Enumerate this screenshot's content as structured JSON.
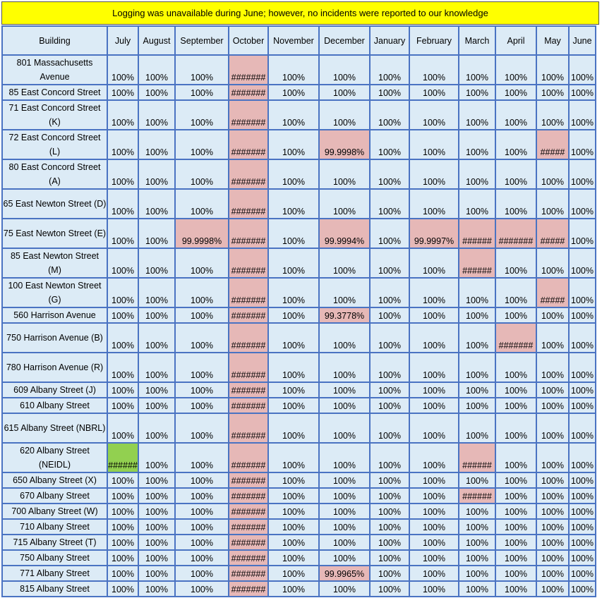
{
  "banner": "Logging was unavailable during June; however, no incidents were reported to our knowledge",
  "columns": [
    "Building",
    "July",
    "August",
    "September",
    "October",
    "November",
    "December",
    "January",
    "February",
    "March",
    "April",
    "May",
    "June"
  ],
  "colors": {
    "banner": "#ffff00",
    "cell": "#dcebf6",
    "border": "#4a73c2",
    "flag": "#e6b8b7",
    "green": "#92d050"
  },
  "rows": [
    {
      "building": "801 Massachusetts Avenue",
      "values": [
        "100%",
        "100%",
        "100%",
        "#######",
        "100%",
        "100%",
        "100%",
        "100%",
        "100%",
        "100%",
        "100%",
        "100%"
      ],
      "flags": [
        "",
        "",
        "",
        "pink",
        "",
        "",
        "",
        "",
        "",
        "",
        "",
        ""
      ]
    },
    {
      "building": "85 East Concord Street",
      "values": [
        "100%",
        "100%",
        "100%",
        "#######",
        "100%",
        "100%",
        "100%",
        "100%",
        "100%",
        "100%",
        "100%",
        "100%"
      ],
      "flags": [
        "",
        "",
        "",
        "pink",
        "",
        "",
        "",
        "",
        "",
        "",
        "",
        ""
      ]
    },
    {
      "building": "71 East Concord Street (K)",
      "values": [
        "100%",
        "100%",
        "100%",
        "#######",
        "100%",
        "100%",
        "100%",
        "100%",
        "100%",
        "100%",
        "100%",
        "100%"
      ],
      "flags": [
        "",
        "",
        "",
        "pink",
        "",
        "",
        "",
        "",
        "",
        "",
        "",
        ""
      ]
    },
    {
      "building": "72 East Concord Street (L)",
      "values": [
        "100%",
        "100%",
        "100%",
        "#######",
        "100%",
        "99.9998%",
        "100%",
        "100%",
        "100%",
        "100%",
        "#####",
        "100%"
      ],
      "flags": [
        "",
        "",
        "",
        "pink",
        "",
        "pink",
        "",
        "",
        "",
        "",
        "pink",
        ""
      ]
    },
    {
      "building": "80 East Concord Street (A)",
      "values": [
        "100%",
        "100%",
        "100%",
        "#######",
        "100%",
        "100%",
        "100%",
        "100%",
        "100%",
        "100%",
        "100%",
        "100%"
      ],
      "flags": [
        "",
        "",
        "",
        "pink",
        "",
        "",
        "",
        "",
        "",
        "",
        "",
        ""
      ]
    },
    {
      "building": "65 East Newton Street (D)",
      "values": [
        "100%",
        "100%",
        "100%",
        "#######",
        "100%",
        "100%",
        "100%",
        "100%",
        "100%",
        "100%",
        "100%",
        "100%"
      ],
      "flags": [
        "",
        "",
        "",
        "pink",
        "",
        "",
        "",
        "",
        "",
        "",
        "",
        ""
      ]
    },
    {
      "building": "75 East Newton Street (E)",
      "values": [
        "100%",
        "100%",
        "99.9998%",
        "#######",
        "100%",
        "99.9994%",
        "100%",
        "99.9997%",
        "######",
        "#######",
        "#####",
        "100%"
      ],
      "flags": [
        "",
        "",
        "pink",
        "pink",
        "",
        "pink",
        "",
        "pink",
        "pink",
        "pink",
        "pink",
        ""
      ]
    },
    {
      "building": "85 East Newton Street (M)",
      "values": [
        "100%",
        "100%",
        "100%",
        "#######",
        "100%",
        "100%",
        "100%",
        "100%",
        "######",
        "100%",
        "100%",
        "100%"
      ],
      "flags": [
        "",
        "",
        "",
        "pink",
        "",
        "",
        "",
        "",
        "pink",
        "",
        "",
        ""
      ]
    },
    {
      "building": "100 East Newton Street (G)",
      "values": [
        "100%",
        "100%",
        "100%",
        "#######",
        "100%",
        "100%",
        "100%",
        "100%",
        "100%",
        "100%",
        "#####",
        "100%"
      ],
      "flags": [
        "",
        "",
        "",
        "pink",
        "",
        "",
        "",
        "",
        "",
        "",
        "pink",
        ""
      ]
    },
    {
      "building": "560 Harrison Avenue",
      "values": [
        "100%",
        "100%",
        "100%",
        "#######",
        "100%",
        "99.3778%",
        "100%",
        "100%",
        "100%",
        "100%",
        "100%",
        "100%"
      ],
      "flags": [
        "",
        "",
        "",
        "pink",
        "",
        "pink",
        "",
        "",
        "",
        "",
        "",
        ""
      ]
    },
    {
      "building": "750 Harrison Avenue (B)",
      "values": [
        "100%",
        "100%",
        "100%",
        "#######",
        "100%",
        "100%",
        "100%",
        "100%",
        "100%",
        "#######",
        "100%",
        "100%"
      ],
      "flags": [
        "",
        "",
        "",
        "pink",
        "",
        "",
        "",
        "",
        "",
        "pink",
        "",
        ""
      ]
    },
    {
      "building": "780 Harrison Avenue (R)",
      "values": [
        "100%",
        "100%",
        "100%",
        "#######",
        "100%",
        "100%",
        "100%",
        "100%",
        "100%",
        "100%",
        "100%",
        "100%"
      ],
      "flags": [
        "",
        "",
        "",
        "pink",
        "",
        "",
        "",
        "",
        "",
        "",
        "",
        ""
      ]
    },
    {
      "building": "609 Albany Street (J)",
      "values": [
        "100%",
        "100%",
        "100%",
        "#######",
        "100%",
        "100%",
        "100%",
        "100%",
        "100%",
        "100%",
        "100%",
        "100%"
      ],
      "flags": [
        "",
        "",
        "",
        "pink",
        "",
        "",
        "",
        "",
        "",
        "",
        "",
        ""
      ]
    },
    {
      "building": "610 Albany Street",
      "values": [
        "100%",
        "100%",
        "100%",
        "#######",
        "100%",
        "100%",
        "100%",
        "100%",
        "100%",
        "100%",
        "100%",
        "100%"
      ],
      "flags": [
        "",
        "",
        "",
        "pink",
        "",
        "",
        "",
        "",
        "",
        "",
        "",
        ""
      ]
    },
    {
      "building": "615 Albany Street (NBRL)",
      "values": [
        "100%",
        "100%",
        "100%",
        "#######",
        "100%",
        "100%",
        "100%",
        "100%",
        "100%",
        "100%",
        "100%",
        "100%"
      ],
      "flags": [
        "",
        "",
        "",
        "pink",
        "",
        "",
        "",
        "",
        "",
        "",
        "",
        ""
      ]
    },
    {
      "building": "620 Albany Street (NEIDL)",
      "values": [
        "######",
        "100%",
        "100%",
        "#######",
        "100%",
        "100%",
        "100%",
        "100%",
        "######",
        "100%",
        "100%",
        "100%"
      ],
      "flags": [
        "green",
        "",
        "",
        "pink",
        "",
        "",
        "",
        "",
        "pink",
        "",
        "",
        ""
      ]
    },
    {
      "building": "650 Albany Street (X)",
      "values": [
        "100%",
        "100%",
        "100%",
        "#######",
        "100%",
        "100%",
        "100%",
        "100%",
        "100%",
        "100%",
        "100%",
        "100%"
      ],
      "flags": [
        "",
        "",
        "",
        "pink",
        "",
        "",
        "",
        "",
        "",
        "",
        "",
        ""
      ]
    },
    {
      "building": "670 Albany Street",
      "values": [
        "100%",
        "100%",
        "100%",
        "#######",
        "100%",
        "100%",
        "100%",
        "100%",
        "######",
        "100%",
        "100%",
        "100%"
      ],
      "flags": [
        "",
        "",
        "",
        "pink",
        "",
        "",
        "",
        "",
        "pink",
        "",
        "",
        ""
      ]
    },
    {
      "building": "700 Albany Street (W)",
      "values": [
        "100%",
        "100%",
        "100%",
        "#######",
        "100%",
        "100%",
        "100%",
        "100%",
        "100%",
        "100%",
        "100%",
        "100%"
      ],
      "flags": [
        "",
        "",
        "",
        "pink",
        "",
        "",
        "",
        "",
        "",
        "",
        "",
        ""
      ]
    },
    {
      "building": "710 Albany Street",
      "values": [
        "100%",
        "100%",
        "100%",
        "#######",
        "100%",
        "100%",
        "100%",
        "100%",
        "100%",
        "100%",
        "100%",
        "100%"
      ],
      "flags": [
        "",
        "",
        "",
        "pink",
        "",
        "",
        "",
        "",
        "",
        "",
        "",
        ""
      ]
    },
    {
      "building": "715 Albany Street (T)",
      "values": [
        "100%",
        "100%",
        "100%",
        "#######",
        "100%",
        "100%",
        "100%",
        "100%",
        "100%",
        "100%",
        "100%",
        "100%"
      ],
      "flags": [
        "",
        "",
        "",
        "pink",
        "",
        "",
        "",
        "",
        "",
        "",
        "",
        ""
      ]
    },
    {
      "building": "750 Albany Street",
      "values": [
        "100%",
        "100%",
        "100%",
        "#######",
        "100%",
        "100%",
        "100%",
        "100%",
        "100%",
        "100%",
        "100%",
        "100%"
      ],
      "flags": [
        "",
        "",
        "",
        "pink",
        "",
        "",
        "",
        "",
        "",
        "",
        "",
        ""
      ]
    },
    {
      "building": "771 Albany Street",
      "values": [
        "100%",
        "100%",
        "100%",
        "#######",
        "100%",
        "99.9965%",
        "100%",
        "100%",
        "100%",
        "100%",
        "100%",
        "100%"
      ],
      "flags": [
        "",
        "",
        "",
        "pink",
        "",
        "pink",
        "",
        "",
        "",
        "",
        "",
        ""
      ]
    },
    {
      "building": "815 Albany Street",
      "values": [
        "100%",
        "100%",
        "100%",
        "#######",
        "100%",
        "100%",
        "100%",
        "100%",
        "100%",
        "100%",
        "100%",
        "100%"
      ],
      "flags": [
        "",
        "",
        "",
        "pink",
        "",
        "",
        "",
        "",
        "",
        "",
        "",
        ""
      ]
    }
  ]
}
